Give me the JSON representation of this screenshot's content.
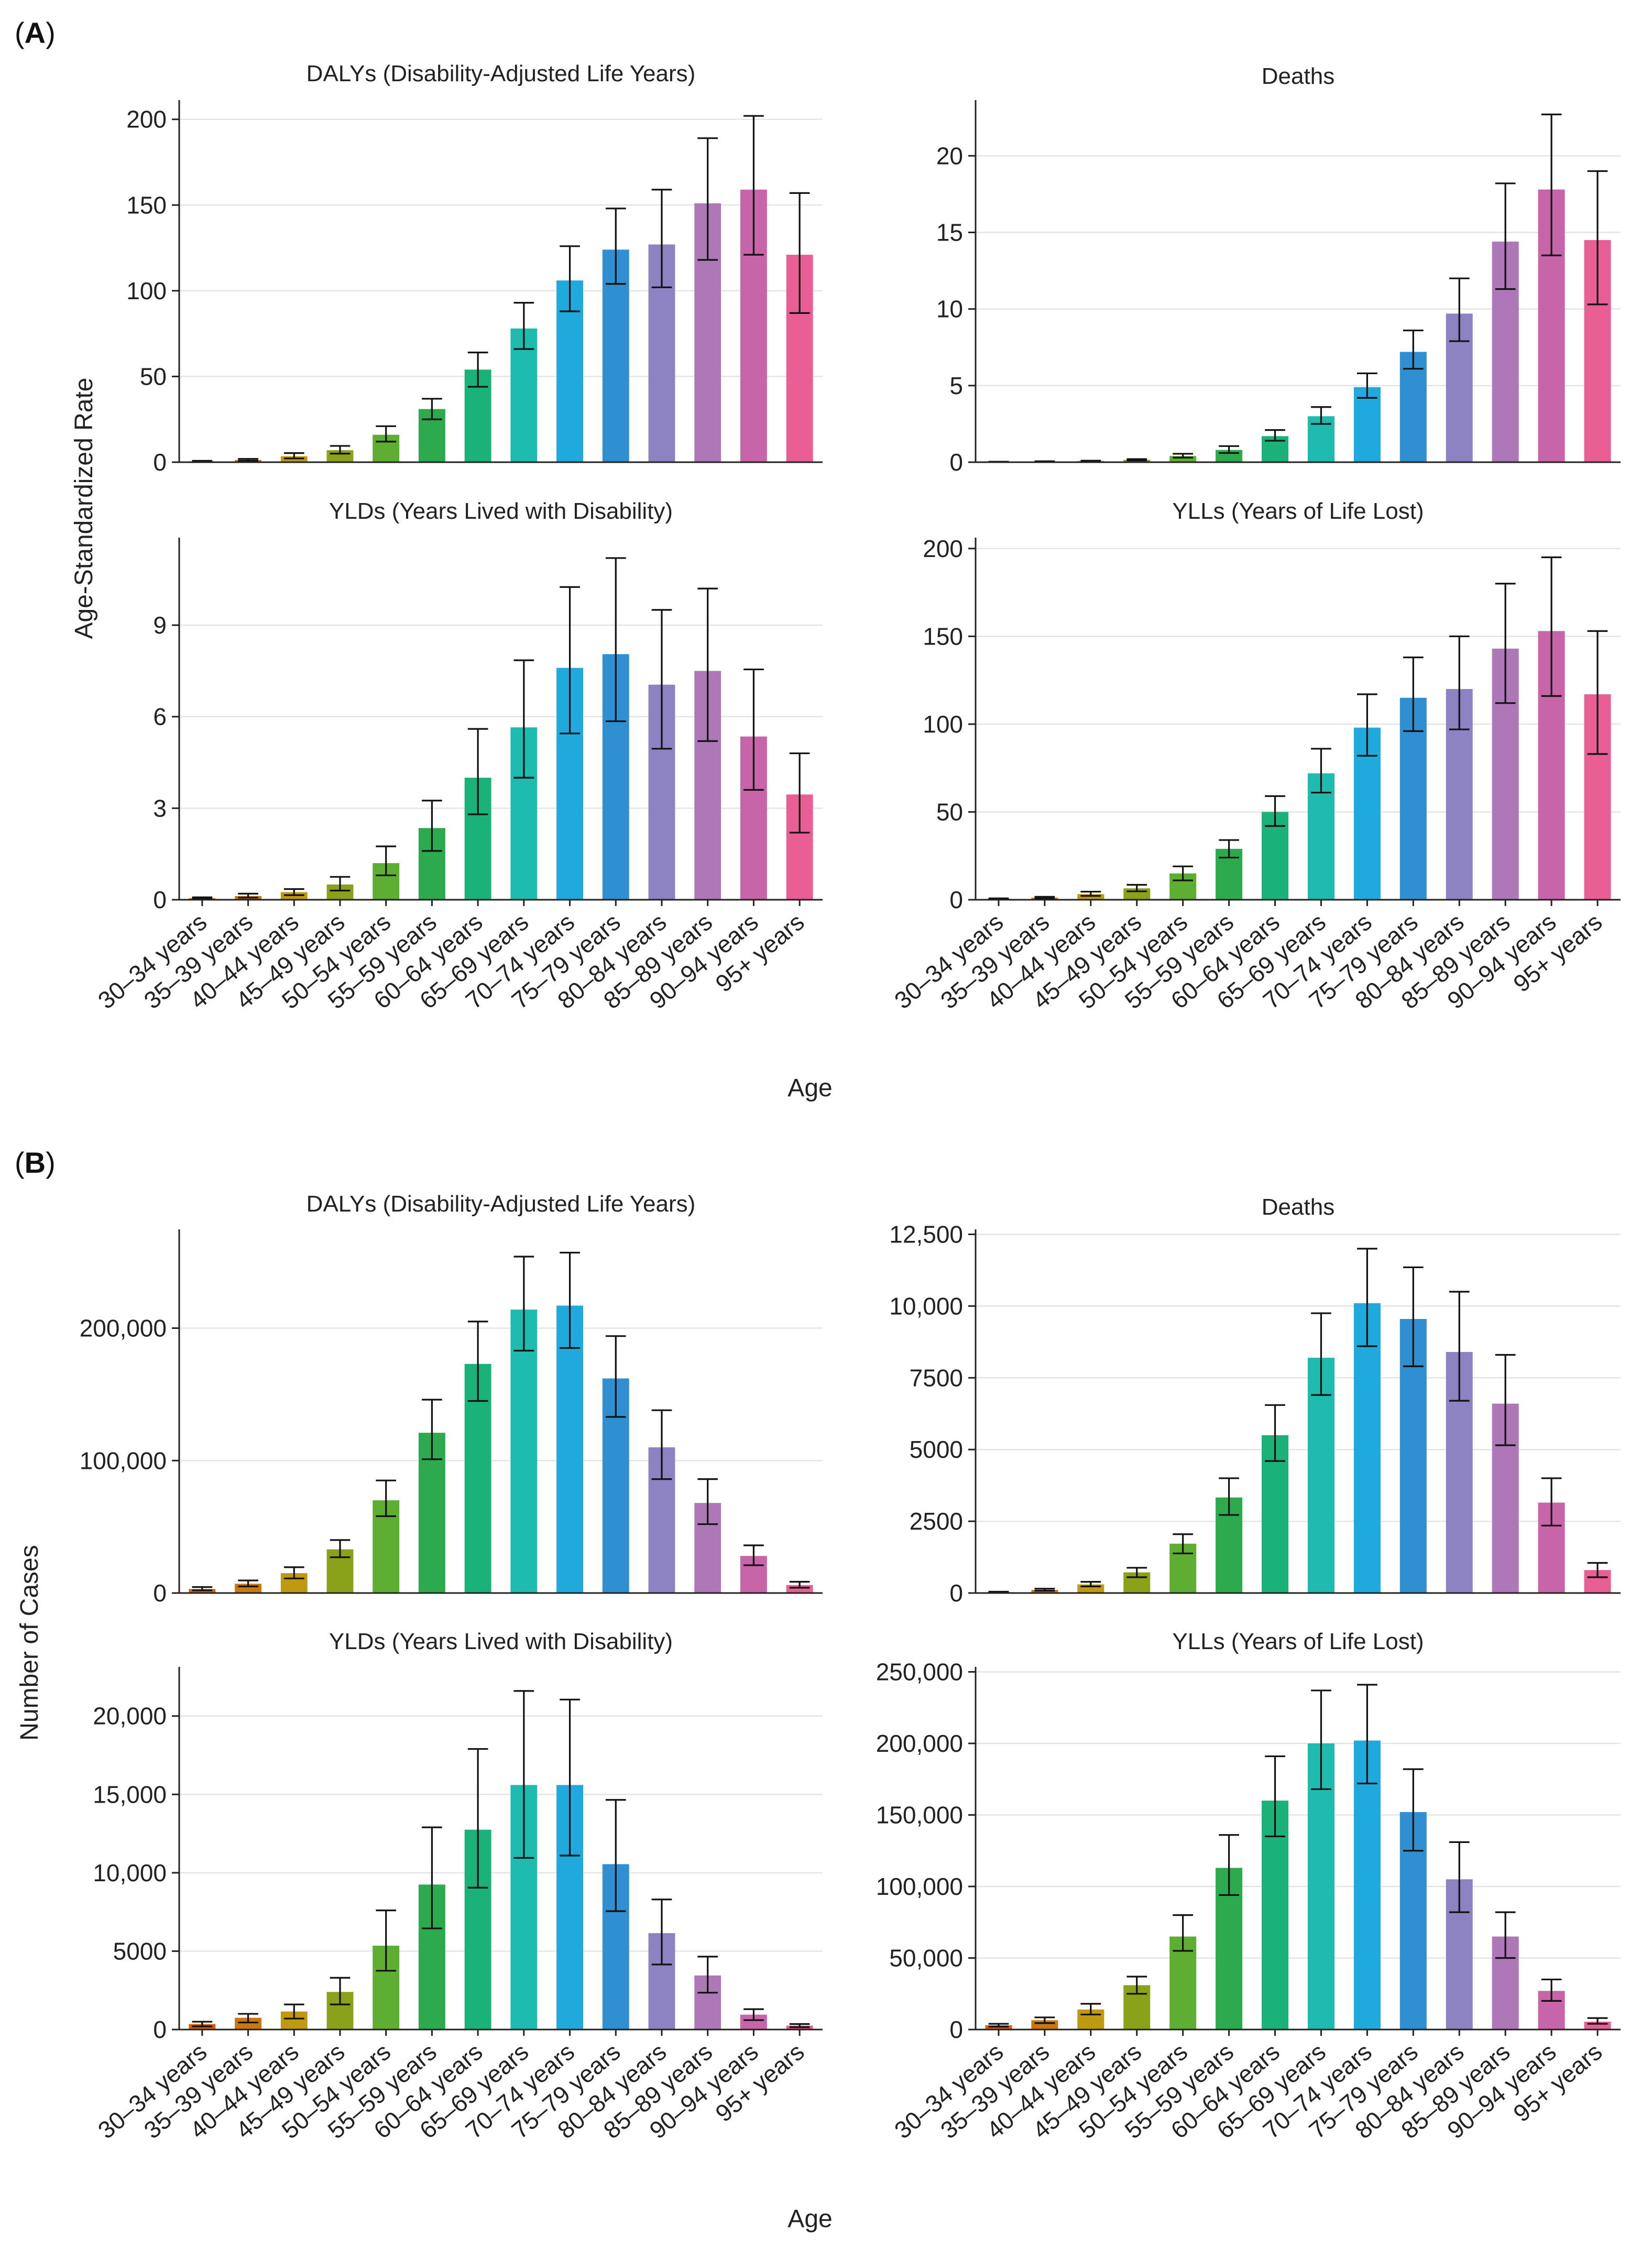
{
  "panel_labels": {
    "a": "A",
    "b": "B"
  },
  "axis_labels": {
    "a_y": "Age-Standardized Rate",
    "a_x": "Age",
    "b_y": "Number of Cases",
    "b_x": "Age"
  },
  "colors": [
    "#d95f02",
    "#c8780e",
    "#bf9a10",
    "#8aa21a",
    "#5fae34",
    "#2eaa4e",
    "#1bb27a",
    "#1fbab0",
    "#1fa9dc",
    "#2f8fd0",
    "#8e83c2",
    "#ae78b8",
    "#c765a8",
    "#e85e95"
  ],
  "chart_data": [
    {
      "id": "a_dalys",
      "type": "bar",
      "title": "DALYs (Disability-Adjusted Life Years)",
      "categories": [
        "30–34 years",
        "35–39 years",
        "40–44 years",
        "45–49 years",
        "50–54 years",
        "55–59 years",
        "60–64 years",
        "65–69 years",
        "70–74 years",
        "75–79 years",
        "80–84 years",
        "85–89 years",
        "90–94 years",
        "95+ years"
      ],
      "values": [
        0.5,
        1.3,
        3.5,
        7,
        16,
        31,
        54,
        78,
        106,
        124,
        127,
        151,
        159,
        121
      ],
      "lower": [
        0.3,
        0.8,
        2.2,
        5,
        12,
        25,
        44,
        66,
        88,
        104,
        102,
        118,
        121,
        87
      ],
      "upper": [
        0.8,
        1.9,
        5.3,
        9.5,
        21,
        37,
        64,
        93,
        126,
        148,
        159,
        189,
        202,
        157
      ],
      "ylim": [
        0,
        210
      ],
      "yticks": [
        0,
        50,
        100,
        150,
        200
      ],
      "yticklabels": [
        "0",
        "50",
        "100",
        "150",
        "200"
      ]
    },
    {
      "id": "a_deaths",
      "type": "bar",
      "title": "Deaths",
      "categories": [
        "30–34 years",
        "35–39 years",
        "40–44 years",
        "45–49 years",
        "50–54 years",
        "55–59 years",
        "60–64 years",
        "65–69 years",
        "70–74 years",
        "75–79 years",
        "80–84 years",
        "85–89 years",
        "90–94 years",
        "95+ years"
      ],
      "values": [
        0.02,
        0.04,
        0.08,
        0.15,
        0.4,
        0.8,
        1.7,
        3.0,
        4.9,
        7.2,
        9.7,
        14.4,
        17.8,
        14.5
      ],
      "lower": [
        0.01,
        0.03,
        0.06,
        0.12,
        0.3,
        0.6,
        1.4,
        2.5,
        4.2,
        6.1,
        7.9,
        11.3,
        13.5,
        10.3
      ],
      "upper": [
        0.03,
        0.06,
        0.1,
        0.2,
        0.55,
        1.05,
        2.1,
        3.6,
        5.8,
        8.6,
        12.0,
        18.2,
        22.7,
        19.0
      ],
      "ylim": [
        0,
        23.5
      ],
      "yticks": [
        0,
        5,
        10,
        15,
        20
      ],
      "yticklabels": [
        "0",
        "5",
        "10",
        "15",
        "20"
      ]
    },
    {
      "id": "a_ylds",
      "type": "bar",
      "title": "YLDs (Years Lived with Disability)",
      "categories": [
        "30–34 years",
        "35–39 years",
        "40–44 years",
        "45–49 years",
        "50–54 years",
        "55–59 years",
        "60–64 years",
        "65–69 years",
        "70–74 years",
        "75–79 years",
        "80–84 years",
        "85–89 years",
        "90–94 years",
        "95+ years"
      ],
      "values": [
        0.05,
        0.12,
        0.25,
        0.5,
        1.2,
        2.35,
        4.0,
        5.65,
        7.6,
        8.05,
        7.05,
        7.5,
        5.35,
        3.45
      ],
      "lower": [
        0.03,
        0.07,
        0.15,
        0.3,
        0.8,
        1.6,
        2.8,
        4.0,
        5.45,
        5.85,
        4.95,
        5.2,
        3.6,
        2.2
      ],
      "upper": [
        0.08,
        0.2,
        0.35,
        0.75,
        1.75,
        3.25,
        5.6,
        7.85,
        10.25,
        11.2,
        9.5,
        10.2,
        7.55,
        4.8
      ],
      "ylim": [
        0,
        11.8
      ],
      "yticks": [
        0,
        3,
        6,
        9
      ],
      "yticklabels": [
        "0",
        "3",
        "6",
        "9"
      ]
    },
    {
      "id": "a_ylls",
      "type": "bar",
      "title": "YLLs (Years of Life Lost)",
      "categories": [
        "30–34 years",
        "35–39 years",
        "40–44 years",
        "45–49 years",
        "50–54 years",
        "55–59 years",
        "60–64 years",
        "65–69 years",
        "70–74 years",
        "75–79 years",
        "80–84 years",
        "85–89 years",
        "90–94 years",
        "95+ years"
      ],
      "values": [
        0.5,
        1.2,
        3.2,
        6.5,
        15,
        29,
        50,
        72,
        98,
        115,
        120,
        143,
        153,
        117
      ],
      "lower": [
        0.3,
        0.8,
        2.2,
        4.8,
        11,
        24,
        42,
        61,
        82,
        96,
        97,
        112,
        116,
        83
      ],
      "upper": [
        0.8,
        1.7,
        4.6,
        8.5,
        19,
        34,
        59,
        86,
        117,
        138,
        150,
        180,
        195,
        153
      ],
      "ylim": [
        0,
        205
      ],
      "yticks": [
        0,
        50,
        100,
        150,
        200
      ],
      "yticklabels": [
        "0",
        "50",
        "100",
        "150",
        "200"
      ]
    },
    {
      "id": "b_dalys",
      "type": "bar",
      "title": "DALYs (Disability-Adjusted Life Years)",
      "categories": [
        "30–34 years",
        "35–39 years",
        "40–44 years",
        "45–49 years",
        "50–54 years",
        "55–59 years",
        "60–64 years",
        "65–69 years",
        "70–74 years",
        "75–79 years",
        "80–84 years",
        "85–89 years",
        "90–94 years",
        "95+ years"
      ],
      "values": [
        3000,
        7000,
        15000,
        33000,
        70000,
        121000,
        173000,
        214000,
        217000,
        162000,
        110000,
        68000,
        28000,
        6000
      ],
      "lower": [
        2000,
        5000,
        11000,
        27000,
        58000,
        101000,
        145000,
        183000,
        185000,
        133000,
        86000,
        52000,
        21000,
        4000
      ],
      "upper": [
        4500,
        9500,
        19500,
        40000,
        85000,
        146000,
        205000,
        254000,
        257000,
        194000,
        138000,
        86000,
        36000,
        8500
      ],
      "ylim": [
        0,
        273000
      ],
      "yticks": [
        0,
        100000,
        200000
      ],
      "yticklabels": [
        "0",
        "100,000",
        "200,000"
      ]
    },
    {
      "id": "b_deaths",
      "type": "bar",
      "title": "Deaths",
      "categories": [
        "30–34 years",
        "35–39 years",
        "40–44 years",
        "45–49 years",
        "50–54 years",
        "55–59 years",
        "60–64 years",
        "65–69 years",
        "70–74 years",
        "75–79 years",
        "80–84 years",
        "85–89 years",
        "90–94 years",
        "95+ years"
      ],
      "values": [
        30,
        110,
        300,
        720,
        1720,
        3330,
        5500,
        8200,
        10100,
        9550,
        8400,
        6600,
        3150,
        800
      ],
      "lower": [
        20,
        80,
        230,
        550,
        1380,
        2720,
        4600,
        6900,
        8600,
        7900,
        6700,
        5150,
        2350,
        550
      ],
      "upper": [
        45,
        150,
        390,
        880,
        2050,
        4000,
        6550,
        9750,
        12000,
        11350,
        10500,
        8300,
        4000,
        1050
      ],
      "ylim": [
        0,
        12600
      ],
      "yticks": [
        0,
        2500,
        5000,
        7500,
        10000,
        12500
      ],
      "yticklabels": [
        "0",
        "2500",
        "5000",
        "7500",
        "10,000",
        "12,500"
      ]
    },
    {
      "id": "b_ylds",
      "type": "bar",
      "title": "YLDs (Years Lived with Disability)",
      "categories": [
        "30–34 years",
        "35–39 years",
        "40–44 years",
        "45–49 years",
        "50–54 years",
        "55–59 years",
        "60–64 years",
        "65–69 years",
        "70–74 years",
        "75–79 years",
        "80–84 years",
        "85–89 years",
        "90–94 years",
        "95+ years"
      ],
      "values": [
        350,
        750,
        1150,
        2400,
        5350,
        9250,
        12750,
        15600,
        15600,
        10550,
        6150,
        3450,
        950,
        250
      ],
      "lower": [
        200,
        450,
        700,
        1600,
        3750,
        6450,
        9050,
        10950,
        11100,
        7550,
        4150,
        2350,
        600,
        150
      ],
      "upper": [
        500,
        1000,
        1600,
        3300,
        7600,
        12900,
        17900,
        21600,
        21050,
        14650,
        8300,
        4650,
        1300,
        350
      ],
      "ylim": [
        0,
        23000
      ],
      "yticks": [
        0,
        5000,
        10000,
        15000,
        20000
      ],
      "yticklabels": [
        "0",
        "5000",
        "10,000",
        "15,000",
        "20,000"
      ]
    },
    {
      "id": "b_ylls",
      "type": "bar",
      "title": "YLLs (Years of Life Lost)",
      "categories": [
        "30–34 years",
        "35–39 years",
        "40–44 years",
        "45–49 years",
        "50–54 years",
        "55–59 years",
        "60–64 years",
        "65–69 years",
        "70–74 years",
        "75–79 years",
        "80–84 years",
        "85–89 years",
        "90–94 years",
        "95+ years"
      ],
      "values": [
        3000,
        6500,
        14000,
        31000,
        65000,
        113000,
        160000,
        200000,
        202000,
        152000,
        105000,
        65000,
        27000,
        5500
      ],
      "lower": [
        2000,
        4500,
        10500,
        25000,
        55000,
        94000,
        135000,
        168000,
        172000,
        125000,
        82000,
        50000,
        20000,
        4000
      ],
      "upper": [
        4000,
        8500,
        18000,
        37000,
        80000,
        136000,
        191000,
        237000,
        241000,
        182000,
        131000,
        82000,
        35000,
        8000
      ],
      "ylim": [
        0,
        252000
      ],
      "yticks": [
        0,
        50000,
        100000,
        150000,
        200000,
        250000
      ],
      "yticklabels": [
        "0",
        "50,000",
        "100,000",
        "150,000",
        "200,000",
        "250,000"
      ]
    }
  ]
}
